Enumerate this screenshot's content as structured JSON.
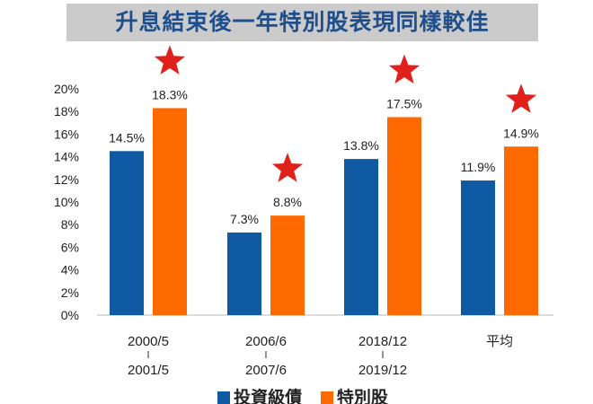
{
  "title": "升息結束後一年特別股表現同樣較佳",
  "chart_data": {
    "type": "bar",
    "title": "升息結束後一年特別股表現同樣較佳",
    "categories": [
      [
        "2000/5",
        "l",
        "2001/5"
      ],
      [
        "2006/6",
        "l",
        "2007/6"
      ],
      [
        "2018/12",
        "l",
        "2019/12"
      ],
      [
        "平均"
      ]
    ],
    "series": [
      {
        "name": "投資級債",
        "color": "#0f5aa3",
        "values": [
          14.5,
          7.3,
          13.8,
          11.9
        ],
        "labels": [
          "14.5%",
          "7.3%",
          "13.8%",
          "11.9%"
        ]
      },
      {
        "name": "特別股",
        "color": "#ff6a00",
        "values": [
          18.3,
          8.8,
          17.5,
          14.9
        ],
        "labels": [
          "18.3%",
          "8.8%",
          "17.5%",
          "14.9%"
        ]
      }
    ],
    "ylim": [
      0,
      20
    ],
    "yticks": [
      0,
      2,
      4,
      6,
      8,
      10,
      12,
      14,
      16,
      18,
      20
    ],
    "ytick_labels": [
      "0%",
      "2%",
      "4%",
      "6%",
      "8%",
      "10%",
      "12%",
      "14%",
      "16%",
      "18%",
      "20%"
    ],
    "star_color": "#e0201b",
    "legend_position": "bottom",
    "grid": false
  }
}
